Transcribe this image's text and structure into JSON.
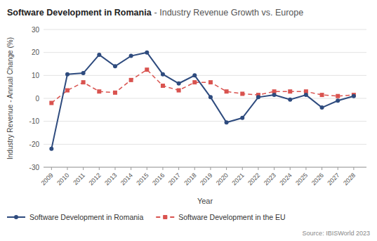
{
  "chart_data": {
    "type": "line",
    "title": "Software Development in Romania",
    "subtitle": "- Industry Revenue Growth vs. Europe",
    "x_label": "Year",
    "y_label": "Industry Revenue - Annual Change (%)",
    "annotations": [
      "Source: IBISWorld 2023"
    ],
    "x": [
      2009,
      2010,
      2011,
      2012,
      2013,
      2014,
      2015,
      2016,
      2017,
      2018,
      2019,
      2020,
      2021,
      2022,
      2023,
      2024,
      2025,
      2026,
      2027,
      2028
    ],
    "series": [
      {
        "name": "Software Development in Romania",
        "color": "#2e4b7e",
        "marker": "circle",
        "line_style": "solid",
        "values": [
          -22,
          10.5,
          11,
          19,
          14,
          18.5,
          20,
          10.5,
          6.5,
          10,
          0.5,
          -10.5,
          -8.5,
          0.5,
          1.5,
          -0.5,
          1.5,
          -4,
          -1,
          1
        ]
      },
      {
        "name": "Software Development in the EU",
        "color": "#d9534f",
        "marker": "square",
        "line_style": "dashed",
        "values": [
          -2,
          3.5,
          7,
          3,
          2.5,
          8,
          12.5,
          5.5,
          3.5,
          7,
          7,
          3,
          2,
          1.5,
          3,
          3,
          3,
          1.5,
          1,
          1.5
        ]
      }
    ],
    "xlim": [
      2008.5,
      2028.8
    ],
    "xticks": [
      2009,
      2010,
      2011,
      2012,
      2013,
      2014,
      2015,
      2016,
      2017,
      2018,
      2019,
      2020,
      2021,
      2022,
      2023,
      2024,
      2025,
      2026,
      2027,
      2028
    ],
    "ylim": [
      -30,
      30
    ],
    "yticks": [
      -30,
      -20,
      -10,
      0,
      10,
      20,
      30
    ],
    "grid": true,
    "legend": "bottom"
  }
}
